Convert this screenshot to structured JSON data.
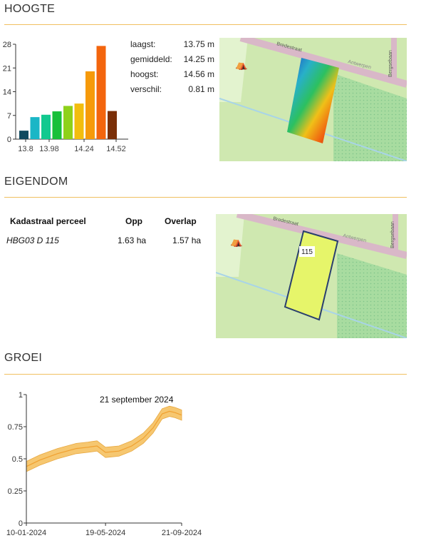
{
  "sections": {
    "height": {
      "title": "HOOGTE"
    },
    "ownership": {
      "title": "EIGENDOM"
    },
    "growth": {
      "title": "GROEI"
    }
  },
  "height_stats": [
    {
      "label": "laagst:",
      "value": "13.75 m"
    },
    {
      "label": "gemiddeld:",
      "value": "14.25 m"
    },
    {
      "label": "hoogst:",
      "value": "14.56 m"
    },
    {
      "label": "verschil:",
      "value": "0.81 m"
    }
  ],
  "map_labels": {
    "street1": "Bredestraat",
    "street2": "Antwerpen",
    "street3": "Bergsebaan",
    "parcel_label": "115"
  },
  "ownership": {
    "headers": {
      "parcel": "Kadastraal perceel",
      "area": "Opp",
      "overlap": "Overlap"
    },
    "rows": [
      {
        "parcel": "HBG03 D 115",
        "area": "1.63 ha",
        "overlap": "1.57 ha"
      }
    ]
  },
  "colors": {
    "section_rule": "#f0c060",
    "map_bg": "#cfe8b0",
    "road": "#d9b8c8",
    "parcel_fill": "#e6f56a",
    "parcel_stroke": "#2a3f6e",
    "band_fill": "#f6c770",
    "band_line": "#f0a030"
  },
  "chart_data": [
    {
      "type": "bar",
      "title": "",
      "xlabel": "",
      "ylabel": "",
      "ylim": [
        0,
        28
      ],
      "yticks": [
        "0",
        "7",
        "14",
        "21",
        "28"
      ],
      "xtick_labels": [
        "13.8",
        "13.98",
        "14.24",
        "14.52"
      ],
      "bar_values": [
        2.5,
        6.5,
        7.2,
        8.2,
        9.8,
        10.5,
        20,
        27.5,
        8.3
      ],
      "bar_colors": [
        "#10495e",
        "#1ab6c6",
        "#12c98f",
        "#18c03a",
        "#8ed11a",
        "#f2bd0e",
        "#f69a0a",
        "#f3650d",
        "#7a2f08"
      ],
      "grid": false,
      "legend": "none"
    },
    {
      "type": "area",
      "title": "",
      "annotation": "21 september 2024",
      "xlabel": "",
      "ylabel": "",
      "ylim": [
        0,
        1
      ],
      "yticks": [
        "0",
        "0.25",
        "0.5",
        "0.75",
        "1"
      ],
      "xtick_labels": [
        "10-01-2024",
        "19-05-2024",
        "21-09-2024"
      ],
      "x": [
        "2024-01-10",
        "2024-02-01",
        "2024-03-01",
        "2024-04-01",
        "2024-04-20",
        "2024-05-05",
        "2024-05-19",
        "2024-06-10",
        "2024-07-01",
        "2024-07-20",
        "2024-08-05",
        "2024-08-20",
        "2024-09-01",
        "2024-09-10",
        "2024-09-21"
      ],
      "series": [
        {
          "values": [
            0.44,
            0.49,
            0.54,
            0.58,
            0.59,
            0.6,
            0.55,
            0.56,
            0.6,
            0.66,
            0.74,
            0.85,
            0.87,
            0.86,
            0.84
          ]
        }
      ],
      "band_halfwidth": 0.04,
      "grid": false,
      "legend": "none"
    }
  ]
}
